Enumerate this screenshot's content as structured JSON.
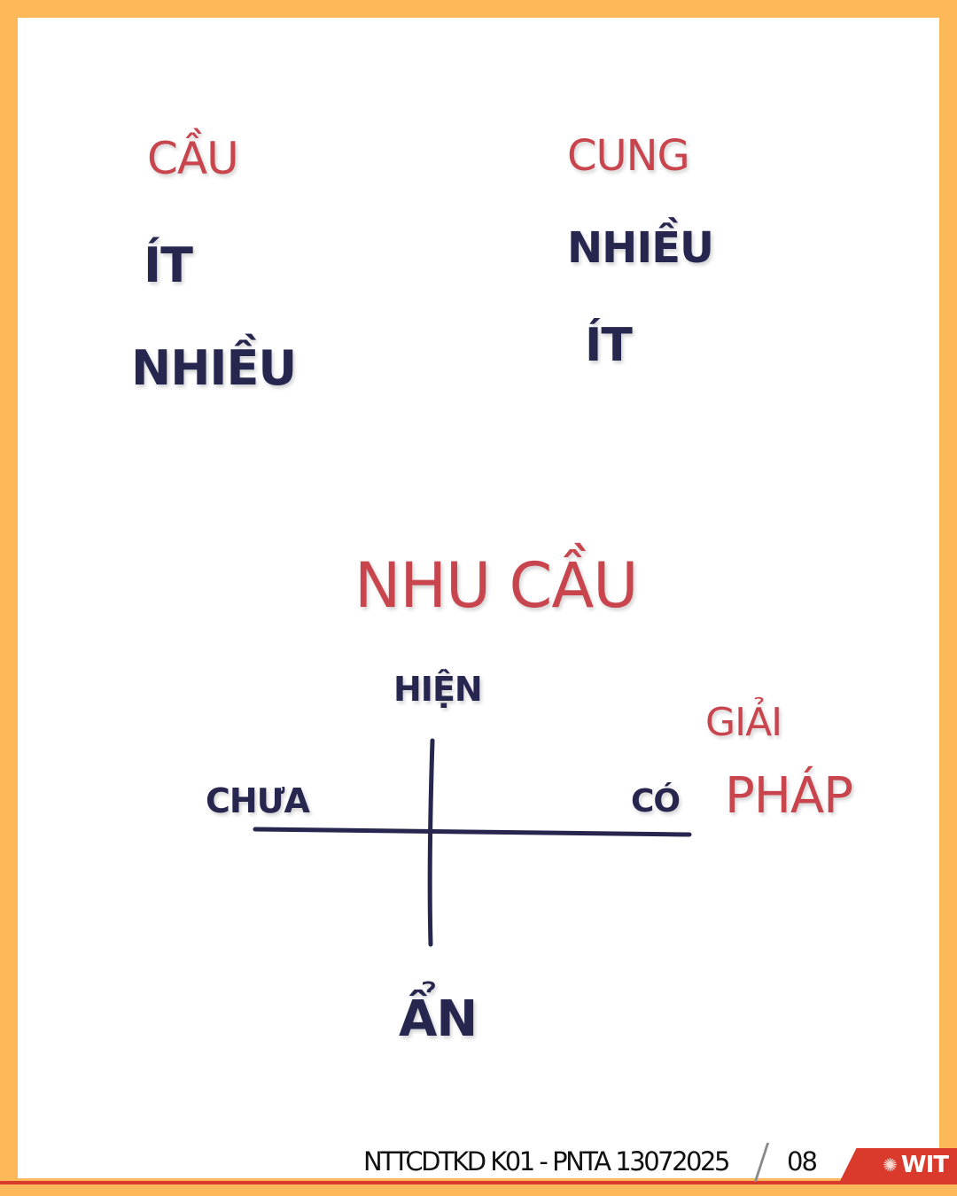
{
  "diagram": {
    "demand_heading": "CẦU",
    "supply_heading": "CUNG",
    "demand_row1": "ÍT",
    "demand_row2": "NHIỀU",
    "supply_row1": "NHIỀU",
    "supply_row2": "ÍT",
    "needs_title": "NHU CẦU",
    "axis_top": "HIỆN",
    "axis_bottom": "ẨN",
    "axis_left": "CHƯA",
    "axis_right": "CÓ",
    "solution_word1": "GIẢI",
    "solution_word2": "PHÁP",
    "colors": {
      "red_ink": "#C8454E",
      "navy_ink": "#26264F"
    }
  },
  "footer": {
    "caption": "NTTCDTKD K01 - PNTA 13072025",
    "page_number": "08",
    "logo_text": "WIT",
    "logo_icon": "sun-gear-icon",
    "accent_color": "#D93A2B"
  },
  "frame": {
    "border_color": "#FDB859"
  }
}
